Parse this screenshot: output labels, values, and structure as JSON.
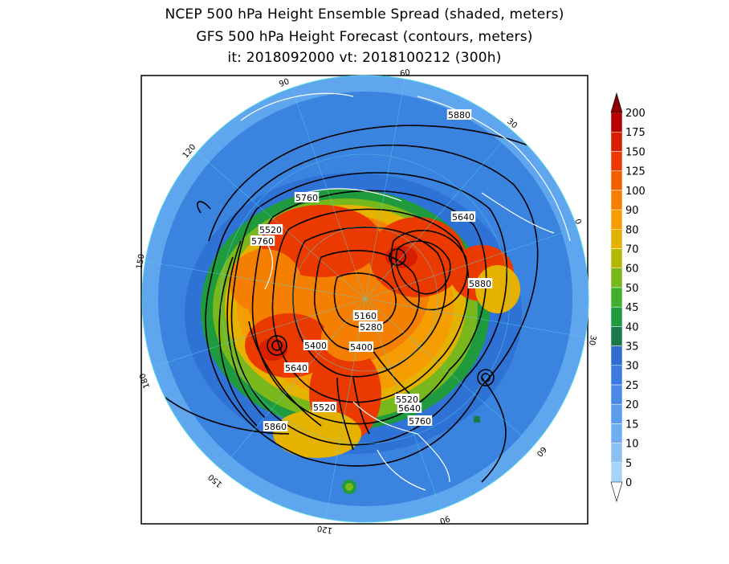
{
  "title": {
    "line1": "NCEP 500 hPa Height Ensemble Spread (shaded, meters)",
    "line2": "GFS 500 hPa Height Forecast (contours, meters)",
    "line3": "it: 2018092000     vt: 2018100212 (300h)"
  },
  "legend": {
    "levels": [
      "0",
      "5",
      "10",
      "15",
      "20",
      "25",
      "30",
      "35",
      "40",
      "45",
      "50",
      "60",
      "70",
      "80",
      "90",
      "100",
      "125",
      "150",
      "175",
      "200"
    ],
    "colors": [
      "#a9d2f8",
      "#8cc0f5",
      "#6fadf0",
      "#5c9cec",
      "#4a8be6",
      "#3b7bdd",
      "#2f6fcf",
      "#1a7a4a",
      "#1f9a3c",
      "#3fae2a",
      "#79b81c",
      "#b3b800",
      "#e6b200",
      "#f59d00",
      "#f57f00",
      "#f25f00",
      "#ea3a00",
      "#d81e00",
      "#b80000",
      "#8e0000"
    ]
  },
  "contour_labels": [
    "5880",
    "5760",
    "5640",
    "5520",
    "5760",
    "5880",
    "5160",
    "5280",
    "5400",
    "5400",
    "5640",
    "5520",
    "5640",
    "5520",
    "5760",
    "5860"
  ],
  "longitude_labels": [
    "60",
    "30",
    "0",
    "30",
    "60",
    "90",
    "120",
    "150",
    "180",
    "150",
    "120",
    "90"
  ]
}
